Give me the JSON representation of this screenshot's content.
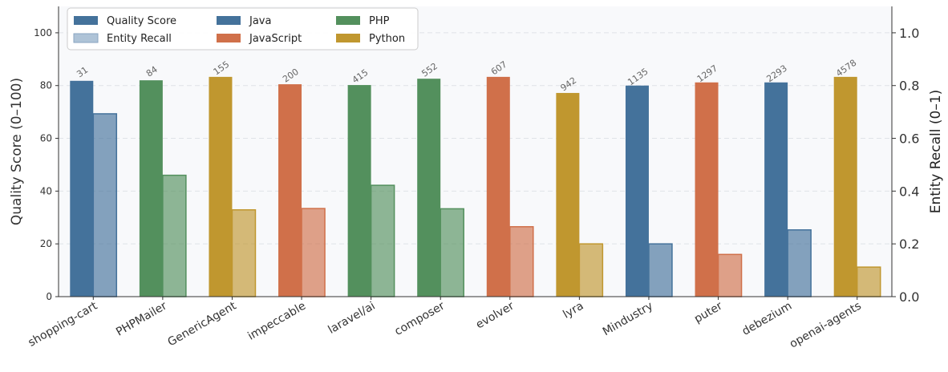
{
  "chart_data": {
    "type": "bar",
    "title": "",
    "categories": [
      "shopping-cart",
      "PHPMailer",
      "GenericAgent",
      "impeccable",
      "laravel/ai",
      "composer",
      "evolver",
      "lyra",
      "Mindustry",
      "puter",
      "debezium",
      "openai-agents"
    ],
    "languages": [
      "Java",
      "PHP",
      "Python",
      "JavaScript",
      "PHP",
      "PHP",
      "JavaScript",
      "Python",
      "Java",
      "JavaScript",
      "Java",
      "Python"
    ],
    "bar_labels": [
      "31",
      "84",
      "155",
      "200",
      "415",
      "552",
      "607",
      "942",
      "1135",
      "1297",
      "2293",
      "4578"
    ],
    "series": [
      {
        "name": "Quality Score",
        "axis": "left",
        "values": [
          81.8,
          82.0,
          83.3,
          80.5,
          80.2,
          82.6,
          83.3,
          77.2,
          80.0,
          81.2,
          81.2,
          83.3
        ]
      },
      {
        "name": "Entity Recall",
        "axis": "right",
        "values": [
          0.693,
          0.46,
          0.329,
          0.334,
          0.422,
          0.333,
          0.265,
          0.2,
          0.2,
          0.16,
          0.253,
          0.112
        ]
      }
    ],
    "ylabel": "Quality Score (0–100)",
    "y2label": "Entity Recall (0–1)",
    "ylim": [
      0,
      110
    ],
    "y2lim": [
      0,
      1.1
    ],
    "yticks": [
      0,
      20,
      40,
      60,
      80,
      100
    ],
    "y2ticks": [
      "0.0",
      "0.2",
      "0.4",
      "0.6",
      "0.8",
      "1.0"
    ],
    "grid": true,
    "legend_position": "top-left",
    "legend": [
      {
        "label": "Quality Score",
        "kind": "quality"
      },
      {
        "label": "Entity Recall",
        "kind": "recall"
      },
      {
        "label": "Java",
        "kind": "Java"
      },
      {
        "label": "JavaScript",
        "kind": "JavaScript"
      },
      {
        "label": "PHP",
        "kind": "PHP"
      },
      {
        "label": "Python",
        "kind": "Python"
      }
    ],
    "colors": {
      "Java": "#44729b",
      "JavaScript": "#d0704a",
      "PHP": "#53905d",
      "Python": "#c0972f",
      "quality_legend": "#44729b",
      "recall_legend": "#aec3d7",
      "plot_bg": "#f8f9fb",
      "grid": "#dfe3e8",
      "bar_label": "#666666"
    }
  }
}
